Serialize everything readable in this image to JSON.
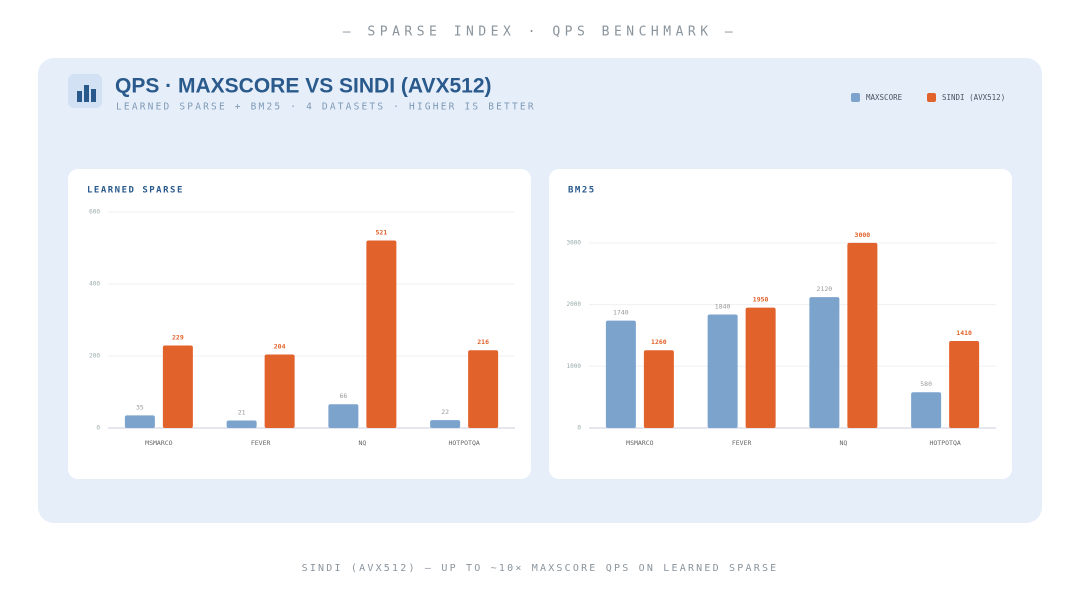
{
  "header": {
    "kicker": "— SPARSE INDEX · QPS BENCHMARK —",
    "title": "QPS · MAXSCORE VS SINDI (AVX512)",
    "subtitle": "LEARNED SPARSE + BM25 · 4 DATASETS · HIGHER IS BETTER"
  },
  "footer": "SINDI (AVX512) — UP TO ~10× MAXSCORE QPS ON LEARNED SPARSE",
  "chart_data": [
    {
      "type": "bar",
      "title": "LEARNED SPARSE",
      "categories": [
        "MSMARCO",
        "FEVER",
        "NQ",
        "HOTPOTQA"
      ],
      "series": [
        {
          "name": "MAXSCORE",
          "color": "#7ba3cc",
          "values": [
            35,
            21,
            66,
            22
          ]
        },
        {
          "name": "SINDI (AVX512)",
          "color": "#e2622b",
          "values": [
            229,
            204,
            521,
            216
          ]
        }
      ],
      "ylim": [
        0,
        600
      ],
      "yticks": [
        0,
        200,
        400,
        600
      ],
      "grid": true
    },
    {
      "type": "bar",
      "title": "BM25",
      "categories": [
        "MSMARCO",
        "FEVER",
        "NQ",
        "HOTPOTQA"
      ],
      "series": [
        {
          "name": "MAXSCORE",
          "color": "#7ba3cc",
          "values": [
            1740,
            1840,
            2120,
            580
          ]
        },
        {
          "name": "SINDI (AVX512)",
          "color": "#e2622b",
          "values": [
            1260,
            1950,
            3000,
            1410
          ]
        }
      ],
      "ylim": [
        0,
        3500
      ],
      "yticks": [
        0,
        1000,
        2000,
        3000
      ],
      "grid": true
    }
  ]
}
